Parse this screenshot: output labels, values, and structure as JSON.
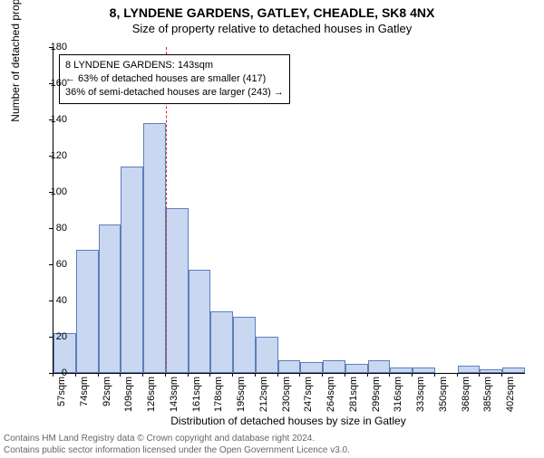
{
  "title_main": "8, LYNDENE GARDENS, GATLEY, CHEADLE, SK8 4NX",
  "title_sub": "Size of property relative to detached houses in Gatley",
  "y_axis_label": "Number of detached properties",
  "x_axis_label": "Distribution of detached houses by size in Gatley",
  "footer_line1": "Contains HM Land Registry data © Crown copyright and database right 2024.",
  "footer_line2": "Contains public sector information licensed under the Open Government Licence v3.0.",
  "annotation": {
    "line1": "8 LYNDENE GARDENS: 143sqm",
    "line2": "← 63% of detached houses are smaller (417)",
    "line3": "36% of semi-detached houses are larger (243) →"
  },
  "chart": {
    "type": "histogram",
    "ylim": [
      0,
      180
    ],
    "ytick_step": 20,
    "yticks": [
      0,
      20,
      40,
      60,
      80,
      100,
      120,
      140,
      160,
      180
    ],
    "bar_fill": "#c9d8f0",
    "bar_stroke": "#5b7fbf",
    "ref_line_color": "#cc3333",
    "ref_line_value": 143,
    "background": "#ffffff",
    "text_color": "#000000",
    "footer_color": "#666666",
    "categories": [
      "57sqm",
      "74sqm",
      "92sqm",
      "109sqm",
      "126sqm",
      "143sqm",
      "161sqm",
      "178sqm",
      "195sqm",
      "212sqm",
      "230sqm",
      "247sqm",
      "264sqm",
      "281sqm",
      "299sqm",
      "316sqm",
      "333sqm",
      "350sqm",
      "368sqm",
      "385sqm",
      "402sqm"
    ],
    "values": [
      22,
      68,
      82,
      114,
      138,
      91,
      57,
      34,
      31,
      20,
      7,
      6,
      7,
      5,
      7,
      3,
      3,
      0,
      4,
      2,
      3
    ]
  }
}
